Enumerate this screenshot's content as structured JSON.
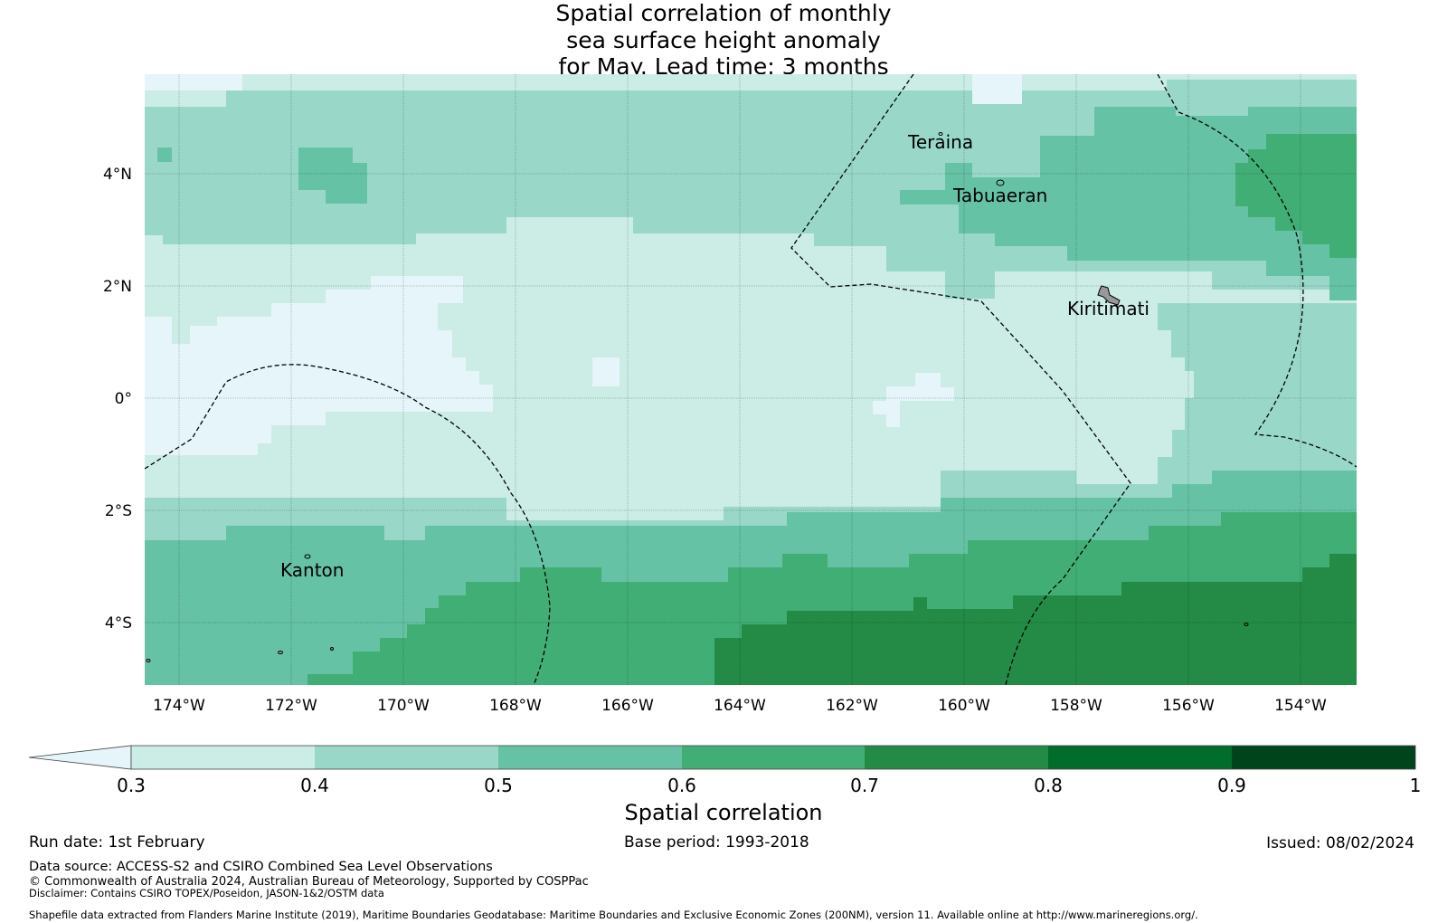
{
  "title": {
    "line1": "Spatial correlation of monthly",
    "line2": "sea surface height anomaly",
    "line3": "for May. Lead time: 3 months"
  },
  "map": {
    "lon_range": [
      -174.6,
      -153.0
    ],
    "lat_range": [
      -5.1,
      5.8
    ],
    "x_ticks": [
      {
        "value": -174,
        "label": "174°W"
      },
      {
        "value": -172,
        "label": "172°W"
      },
      {
        "value": -170,
        "label": "170°W"
      },
      {
        "value": -168,
        "label": "168°W"
      },
      {
        "value": -166,
        "label": "166°W"
      },
      {
        "value": -164,
        "label": "164°W"
      },
      {
        "value": -162,
        "label": "162°W"
      },
      {
        "value": -160,
        "label": "160°W"
      },
      {
        "value": -158,
        "label": "158°W"
      },
      {
        "value": -156,
        "label": "156°W"
      },
      {
        "value": -154,
        "label": "154°W"
      }
    ],
    "y_ticks": [
      {
        "value": 4,
        "label": "4°N"
      },
      {
        "value": 2,
        "label": "2°N"
      },
      {
        "value": 0,
        "label": "0°"
      },
      {
        "value": -2,
        "label": "2°S"
      },
      {
        "value": -4,
        "label": "4°S"
      }
    ],
    "places": [
      {
        "name": "Teraina",
        "lon": -160.4,
        "lat": 4.6
      },
      {
        "name": "Tabuaeran",
        "lon": -159.3,
        "lat": 3.9
      },
      {
        "name": "Kiritimati",
        "lon": -157.4,
        "lat": 1.9
      },
      {
        "name": "Kanton",
        "lon": -171.7,
        "lat": -2.8
      }
    ]
  },
  "colorbar": {
    "label": "Spatial correlation",
    "ticks": [
      "0.3",
      "0.4",
      "0.5",
      "0.6",
      "0.7",
      "0.8",
      "0.9",
      "1"
    ],
    "colors": [
      "#e5f5f9",
      "#ccece6",
      "#99d8c9",
      "#66c2a4",
      "#41ae76",
      "#238b45",
      "#006d2c",
      "#00441b"
    ]
  },
  "footer": {
    "run_date": "Run date: 1st February",
    "base_period": "Base period: 1993-2018",
    "issued": "Issued: 08/02/2024",
    "data_source": "Data source: ACCESS-S2 and CSIRO Combined Sea Level Observations",
    "copyright": "© Commonwealth of Australia 2024, Australian Bureau of Meteorology, Supported by COSPPac",
    "disclaimer": "Disclaimer: Contains CSIRO TOPEX/Poseidon, JASON-1&2/OSTM data",
    "shapefile": "Shapefile data extracted from Flanders Marine Institute (2019), Maritime Boundaries Geodatabase: Maritime Boundaries and Exclusive Economic Zones (200NM), version 11. Available online at http://www.marineregions.org/."
  }
}
